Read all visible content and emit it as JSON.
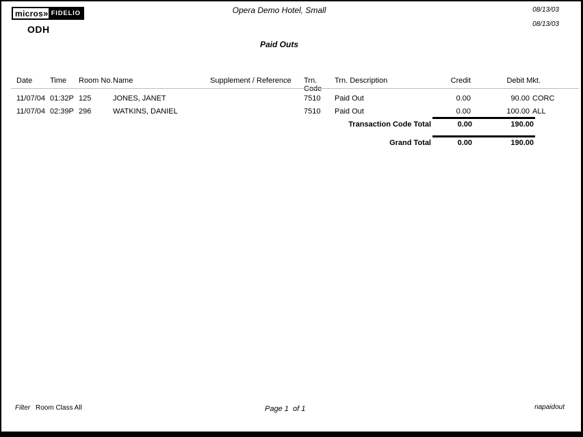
{
  "header": {
    "logo": {
      "micros": "micros",
      "arrow": "»",
      "fidelio": "FIDELIO"
    },
    "property_code": "ODH",
    "hotel_name": "Opera Demo Hotel, Small",
    "report_title": "Paid Outs",
    "date_line1": "08/13/03",
    "date_line2": "08/13/03"
  },
  "table": {
    "columns": [
      "Date",
      "Time",
      "Room No.",
      "Name",
      "Supplement / Reference",
      "Trn. Code",
      "Trn. Description",
      "Credit",
      "Debit Mkt."
    ],
    "rows": [
      {
        "date": "11/07/04",
        "time": "01:32P",
        "room": "125",
        "name": "JONES, JANET",
        "supplement": "",
        "trn_code": "7510",
        "trn_description": "Paid Out",
        "credit": "0.00",
        "debit": "90.00",
        "mkt": "CORC"
      },
      {
        "date": "11/07/04",
        "time": "02:39P",
        "room": "296",
        "name": "WATKINS, DANIEL",
        "supplement": "",
        "trn_code": "7510",
        "trn_description": "Paid Out",
        "credit": "0.00",
        "debit": "100.00",
        "mkt": "ALL"
      }
    ],
    "totals": [
      {
        "label": "Transaction Code Total",
        "credit": "0.00",
        "debit": "190.00"
      },
      {
        "label": "Grand Total",
        "credit": "0.00",
        "debit": "190.00"
      }
    ]
  },
  "footer": {
    "filter_label": "Filter",
    "filter_value": "Room Class All",
    "page_info": "Page 1  of 1",
    "report_id": "napaidout"
  }
}
